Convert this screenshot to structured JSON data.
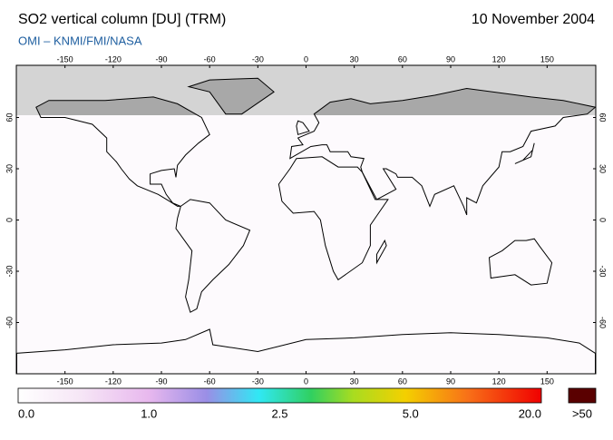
{
  "header": {
    "title": "SO2 vertical column [DU] (TRM)",
    "date": "10 November 2004",
    "source": "OMI  –  KNMI/FMI/NASA"
  },
  "map": {
    "lon_ticks": [
      -150,
      -120,
      -90,
      -60,
      -30,
      0,
      30,
      60,
      90,
      120,
      150
    ],
    "lat_ticks": [
      60,
      30,
      0,
      -30,
      -60
    ]
  },
  "colorbar": {
    "labels": [
      "0.0",
      "1.0",
      "2.5",
      "5.0",
      "20.0"
    ],
    "overflow_label": ">50"
  }
}
